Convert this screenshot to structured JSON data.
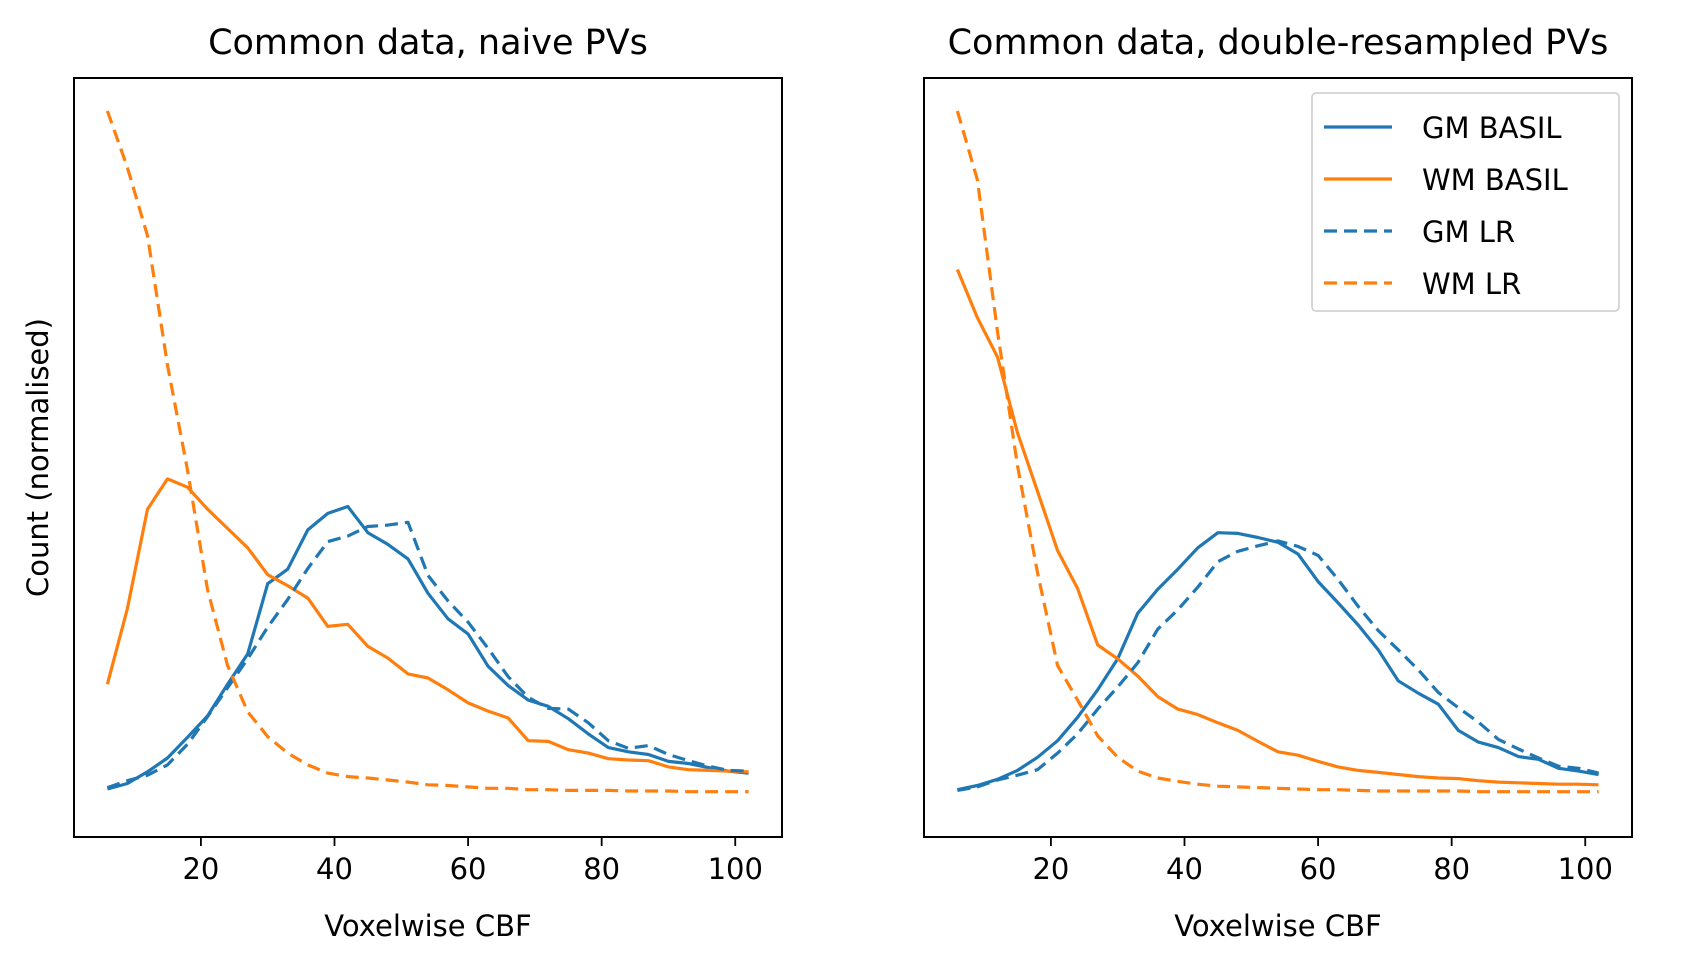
{
  "chart_data": [
    {
      "type": "line",
      "title": "Common data, naive PVs",
      "xlabel": "Voxelwise CBF",
      "ylabel": "Count (normalised)",
      "xlim": [
        1,
        107
      ],
      "ylim": [
        0,
        100
      ],
      "xticks": [
        20,
        40,
        60,
        80,
        100
      ],
      "legend": null,
      "series": [
        {
          "name": "GM BASIL",
          "color": "#1f77b4",
          "dash": "solid",
          "x": [
            6,
            9,
            12,
            15,
            18,
            21,
            24,
            27,
            30,
            33,
            36,
            39,
            42,
            45,
            48,
            51,
            54,
            57,
            60,
            63,
            66,
            69,
            72,
            75,
            78,
            81,
            84,
            87,
            90,
            93,
            96,
            99,
            102
          ],
          "y": [
            1.6,
            2.4,
            4.1,
            6.1,
            9.1,
            12.2,
            16.8,
            21.2,
            31.4,
            33.5,
            39.2,
            41.6,
            42.6,
            38.8,
            37.1,
            35.0,
            30.0,
            26.3,
            24.1,
            19.4,
            16.6,
            14.5,
            13.6,
            11.8,
            9.6,
            7.6,
            7.0,
            6.6,
            5.6,
            5.3,
            4.7,
            4.2,
            3.9
          ]
        },
        {
          "name": "WM BASIL",
          "color": "#ff7f0e",
          "dash": "solid",
          "x": [
            6,
            9,
            12,
            15,
            18,
            21,
            24,
            27,
            30,
            33,
            36,
            39,
            42,
            45,
            48,
            51,
            54,
            57,
            60,
            63,
            66,
            69,
            72,
            75,
            78,
            81,
            84,
            87,
            90,
            93,
            96,
            99,
            102
          ],
          "y": [
            16.8,
            27.8,
            42.2,
            46.6,
            45.4,
            42.2,
            39.4,
            36.6,
            32.7,
            31.1,
            29.3,
            25.2,
            25.5,
            22.3,
            20.6,
            18.3,
            17.7,
            16.0,
            14.1,
            12.9,
            11.9,
            8.6,
            8.5,
            7.3,
            6.8,
            6.0,
            5.8,
            5.7,
            4.8,
            4.4,
            4.3,
            4.2,
            4.1
          ]
        },
        {
          "name": "GM LR",
          "color": "#1f77b4",
          "dash": "dashed",
          "x": [
            6,
            9,
            12,
            15,
            18,
            21,
            24,
            27,
            30,
            33,
            36,
            39,
            42,
            45,
            48,
            51,
            54,
            57,
            60,
            63,
            66,
            69,
            72,
            75,
            78,
            81,
            84,
            87,
            90,
            93,
            96,
            99,
            102
          ],
          "y": [
            1.8,
            2.8,
            3.6,
            5.1,
            8.1,
            12.1,
            16.3,
            20.5,
            25.1,
            29.1,
            33.6,
            37.5,
            38.3,
            39.7,
            39.9,
            40.3,
            32.6,
            28.9,
            25.8,
            22.0,
            17.9,
            14.9,
            13.3,
            13.2,
            11.2,
            8.6,
            7.5,
            7.9,
            6.6,
            5.7,
            4.9,
            4.3,
            4.2
          ]
        },
        {
          "name": "WM LR",
          "color": "#ff7f0e",
          "dash": "dashed",
          "x": [
            6,
            9,
            12,
            15,
            18,
            21,
            24,
            27,
            30,
            33,
            36,
            39,
            42,
            45,
            48,
            51,
            54,
            57,
            60,
            63,
            66,
            69,
            72,
            75,
            78,
            81,
            84,
            87,
            90,
            93,
            96,
            99,
            102
          ],
          "y": [
            100,
            91.8,
            81.9,
            63.1,
            47.9,
            30.5,
            19.5,
            12.8,
            9.2,
            6.8,
            5.1,
            3.9,
            3.4,
            3.2,
            2.9,
            2.6,
            2.2,
            2.1,
            1.9,
            1.7,
            1.7,
            1.5,
            1.5,
            1.4,
            1.4,
            1.4,
            1.3,
            1.3,
            1.3,
            1.2,
            1.2,
            1.2,
            1.2
          ]
        }
      ]
    },
    {
      "type": "line",
      "title": "Common data, double-resampled PVs",
      "xlabel": "Voxelwise CBF",
      "ylabel": "",
      "xlim": [
        1,
        107
      ],
      "ylim": [
        0,
        100
      ],
      "xticks": [
        20,
        40,
        60,
        80,
        100
      ],
      "legend": "top-right",
      "series": [
        {
          "name": "GM BASIL",
          "color": "#1f77b4",
          "dash": "solid",
          "x": [
            6,
            9,
            12,
            15,
            18,
            21,
            24,
            27,
            30,
            33,
            36,
            39,
            42,
            45,
            48,
            51,
            54,
            57,
            60,
            63,
            66,
            69,
            72,
            75,
            78,
            81,
            84,
            87,
            90,
            93,
            96,
            99,
            102
          ],
          "y": [
            1.5,
            2.1,
            3.0,
            4.3,
            6.2,
            8.6,
            12.0,
            16.0,
            20.5,
            27.1,
            30.6,
            33.5,
            36.6,
            38.8,
            38.7,
            38.1,
            37.4,
            35.7,
            31.7,
            28.6,
            25.4,
            21.8,
            17.3,
            15.5,
            13.9,
            10.1,
            8.4,
            7.6,
            6.3,
            5.9,
            4.6,
            4.2,
            3.7
          ]
        },
        {
          "name": "WM BASIL",
          "color": "#ff7f0e",
          "dash": "solid",
          "x": [
            6,
            9,
            12,
            15,
            18,
            21,
            24,
            27,
            30,
            33,
            36,
            39,
            42,
            45,
            48,
            51,
            54,
            57,
            60,
            63,
            66,
            69,
            72,
            75,
            78,
            81,
            84,
            87,
            90,
            93,
            96,
            99,
            102
          ],
          "y": [
            77,
            70.0,
            64.3,
            53.3,
            44.8,
            36.2,
            30.7,
            22.5,
            20.5,
            18.0,
            15.0,
            13.2,
            12.4,
            11.2,
            10.1,
            8.5,
            7.0,
            6.5,
            5.6,
            4.8,
            4.3,
            4.0,
            3.7,
            3.4,
            3.2,
            3.1,
            2.8,
            2.6,
            2.5,
            2.4,
            2.3,
            2.3,
            2.2
          ]
        },
        {
          "name": "GM LR",
          "color": "#1f77b4",
          "dash": "dashed",
          "x": [
            6,
            9,
            12,
            15,
            18,
            21,
            24,
            27,
            30,
            33,
            36,
            39,
            42,
            45,
            48,
            51,
            54,
            57,
            60,
            63,
            66,
            69,
            72,
            75,
            78,
            81,
            84,
            87,
            90,
            93,
            96,
            99,
            102
          ],
          "y": [
            1.4,
            1.9,
            2.9,
            3.6,
            4.4,
            6.8,
            9.6,
            13.2,
            16.4,
            19.9,
            24.8,
            27.6,
            30.9,
            34.6,
            36.1,
            36.9,
            37.6,
            36.8,
            35.5,
            32.0,
            28.1,
            24.6,
            21.8,
            18.9,
            15.6,
            13.4,
            11.3,
            8.8,
            7.4,
            6.1,
            4.9,
            4.6,
            3.9
          ]
        },
        {
          "name": "WM LR",
          "color": "#ff7f0e",
          "dash": "dashed",
          "x": [
            6,
            9,
            12,
            15,
            18,
            21,
            24,
            27,
            30,
            33,
            36,
            39,
            42,
            45,
            48,
            51,
            54,
            57,
            60,
            63,
            66,
            69,
            72,
            75,
            78,
            81,
            84,
            87,
            90,
            93,
            96,
            99,
            102
          ],
          "y": [
            100,
            90.0,
            68.0,
            48.5,
            33.0,
            19.5,
            14.5,
            9.3,
            6.2,
            4.2,
            3.2,
            2.7,
            2.3,
            2.0,
            1.9,
            1.8,
            1.7,
            1.6,
            1.5,
            1.5,
            1.4,
            1.3,
            1.3,
            1.3,
            1.3,
            1.3,
            1.2,
            1.2,
            1.2,
            1.2,
            1.2,
            1.2,
            1.2
          ]
        }
      ]
    }
  ]
}
